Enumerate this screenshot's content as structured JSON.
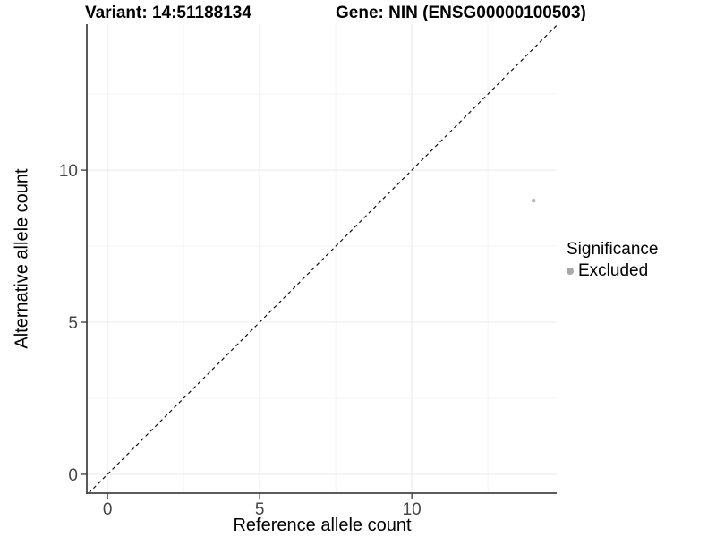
{
  "chart_data": {
    "type": "scatter",
    "titles": {
      "left": "Variant: 14:51188134",
      "right": "Gene: NIN (ENSG00000100503)"
    },
    "xlabel": "Reference allele count",
    "ylabel": "Alternative allele count",
    "x_axis": {
      "ticks": [
        0,
        5,
        10
      ],
      "minor_ticks": [
        2.5,
        7.5,
        12.5
      ],
      "lim": [
        -0.68,
        14.76
      ]
    },
    "y_axis": {
      "ticks": [
        0,
        5,
        10
      ],
      "minor_ticks": [
        2.5,
        7.5,
        12.5
      ],
      "lim": [
        -0.62,
        14.8
      ]
    },
    "series": [
      {
        "name": "Excluded",
        "color": "#b7b7b7",
        "points": [
          {
            "x": 14,
            "y": 9
          }
        ]
      }
    ],
    "reference_line": {
      "type": "identity",
      "slope": 1,
      "intercept": 0,
      "style": "dashed",
      "color": "#111111"
    },
    "legend": {
      "title": "Significance",
      "position": "right",
      "entries": [
        {
          "label": "Excluded",
          "color": "#a8a8a8"
        }
      ]
    },
    "grid": {
      "major": true,
      "minor": true
    },
    "colors": {
      "axis_line": "#454545",
      "tick_text": "#474747",
      "grid_major": "#e9e9e9",
      "grid_minor": "#f4f4f4"
    }
  }
}
